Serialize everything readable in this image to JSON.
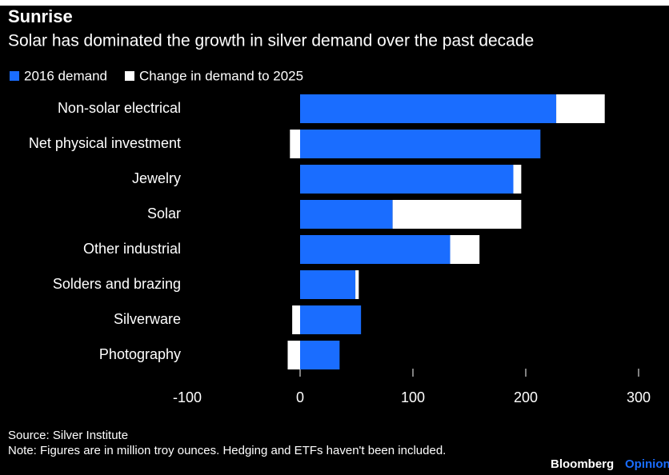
{
  "chart_data": {
    "type": "stacked_bar_horizontal",
    "title": "Sunrise",
    "subtitle": "Solar has dominated the growth in silver demand over the past decade",
    "categories": [
      "Non-solar electrical",
      "Net physical investment",
      "Jewelry",
      "Solar",
      "Other industrial",
      "Solders and brazing",
      "Silverware",
      "Photography"
    ],
    "series": [
      {
        "name": "2016 demand",
        "color": "#1a6dff",
        "values": [
          227,
          213,
          189,
          82,
          133,
          49,
          54,
          35
        ]
      },
      {
        "name": "Change in demand to 2025",
        "color": "#ffffff",
        "values": [
          43,
          -9,
          7,
          114,
          26,
          3,
          -7,
          -11
        ]
      }
    ],
    "xlim": [
      -100,
      300
    ],
    "xticks": [
      -100,
      0,
      100,
      200,
      300
    ],
    "source": "Source: Silver Institute",
    "note": "Note: Figures are in million troy ounces. Hedging and ETFs haven't been included.",
    "brand": "Bloomberg",
    "brand_section": "Opinion"
  }
}
